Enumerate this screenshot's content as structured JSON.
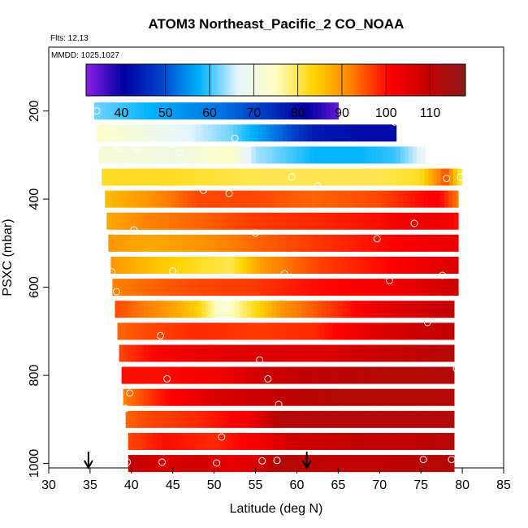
{
  "chart_data": {
    "type": "heatmap",
    "title": "ATOM3 Northeast_Pacific_2 CO_NOAA",
    "flights_label": "Flts: 12,13",
    "mmdd_label": "MMDD: 1025,1027",
    "xlabel": "Latitude (deg N)",
    "ylabel": "PSXC (mbar)",
    "xlim": [
      30,
      85
    ],
    "ylim": [
      1010,
      55
    ],
    "x_ticks": [
      "30",
      "35",
      "40",
      "45",
      "50",
      "55",
      "60",
      "65",
      "70",
      "75",
      "80",
      "85"
    ],
    "y_ticks": [
      "200",
      "400",
      "600",
      "800",
      "1000"
    ],
    "colorbar": {
      "range": [
        32,
        118
      ],
      "tick_labels": [
        "40",
        "50",
        "60",
        "70",
        "80",
        "90",
        "100",
        "110"
      ],
      "palette": [
        "#8a1fe8",
        "#0000a0",
        "#0044cc",
        "#00b4ff",
        "#e6f5ff",
        "#ffffc0",
        "#ffd400",
        "#ff8000",
        "#ff0000",
        "#c40000",
        "#8b1a1a"
      ]
    },
    "profile_markers": [
      34.8,
      61.2
    ],
    "layers": [
      {
        "p": 200,
        "x0": 35.5,
        "x1": 65.0,
        "values": [
          [
            35.5,
            62
          ],
          [
            45,
            56
          ],
          [
            52,
            52
          ],
          [
            56,
            48
          ],
          [
            60,
            42
          ],
          [
            63,
            38
          ],
          [
            65,
            34
          ]
        ]
      },
      {
        "p": 250,
        "x0": 35.8,
        "x1": 72.0,
        "values": [
          [
            35.8,
            74
          ],
          [
            45,
            68
          ],
          [
            52,
            62
          ],
          [
            58,
            52
          ],
          [
            62,
            44
          ],
          [
            68,
            42
          ],
          [
            72,
            42
          ]
        ]
      },
      {
        "p": 300,
        "x0": 36.0,
        "x1": 75.5,
        "values": [
          [
            36,
            72
          ],
          [
            45,
            70
          ],
          [
            52,
            74
          ],
          [
            55,
            64
          ],
          [
            62,
            58
          ],
          [
            68,
            58
          ],
          [
            72,
            60
          ],
          [
            75.5,
            68
          ]
        ]
      },
      {
        "p": 350,
        "x0": 36.4,
        "x1": 80.0,
        "values": [
          [
            36.4,
            82
          ],
          [
            45,
            82
          ],
          [
            55,
            80
          ],
          [
            62,
            80
          ],
          [
            70,
            80
          ],
          [
            75,
            82
          ],
          [
            78,
            96
          ],
          [
            80,
            78
          ]
        ]
      },
      {
        "p": 400,
        "x0": 36.8,
        "x1": 79.5,
        "values": [
          [
            36.8,
            86
          ],
          [
            42,
            90
          ],
          [
            48,
            96
          ],
          [
            55,
            96
          ],
          [
            62,
            94
          ],
          [
            70,
            96
          ],
          [
            75,
            100
          ],
          [
            77,
            102
          ],
          [
            79.5,
            92
          ]
        ]
      },
      {
        "p": 450,
        "x0": 37.0,
        "x1": 79.5,
        "values": [
          [
            37,
            88
          ],
          [
            42,
            92
          ],
          [
            48,
            94
          ],
          [
            55,
            97
          ],
          [
            62,
            98
          ],
          [
            70,
            100
          ],
          [
            76,
            104
          ],
          [
            79.5,
            100
          ]
        ]
      },
      {
        "p": 500,
        "x0": 37.2,
        "x1": 79.5,
        "values": [
          [
            37.2,
            90
          ],
          [
            42,
            88
          ],
          [
            48,
            90
          ],
          [
            55,
            94
          ],
          [
            62,
            97
          ],
          [
            70,
            100
          ],
          [
            76,
            103
          ],
          [
            79.5,
            104
          ]
        ]
      },
      {
        "p": 550,
        "x0": 37.5,
        "x1": 79.5,
        "values": [
          [
            37.5,
            90
          ],
          [
            42,
            86
          ],
          [
            48,
            82
          ],
          [
            52,
            80
          ],
          [
            56,
            90
          ],
          [
            62,
            96
          ],
          [
            70,
            100
          ],
          [
            76,
            104
          ],
          [
            79.5,
            106
          ]
        ]
      },
      {
        "p": 600,
        "x0": 37.7,
        "x1": 79.5,
        "values": [
          [
            37.7,
            92
          ],
          [
            42,
            94
          ],
          [
            48,
            96
          ],
          [
            55,
            97
          ],
          [
            62,
            100
          ],
          [
            70,
            102
          ],
          [
            76,
            106
          ],
          [
            79.5,
            108
          ]
        ]
      },
      {
        "p": 650,
        "x0": 38.0,
        "x1": 79.0,
        "values": [
          [
            38,
            96
          ],
          [
            44,
            90
          ],
          [
            48,
            84
          ],
          [
            51,
            72
          ],
          [
            54,
            80
          ],
          [
            58,
            90
          ],
          [
            65,
            98
          ],
          [
            70,
            104
          ],
          [
            76,
            108
          ],
          [
            79,
            110
          ]
        ]
      },
      {
        "p": 700,
        "x0": 38.3,
        "x1": 79.0,
        "values": [
          [
            38.3,
            94
          ],
          [
            42,
            96
          ],
          [
            48,
            98
          ],
          [
            55,
            97
          ],
          [
            62,
            98
          ],
          [
            68,
            104
          ],
          [
            74,
            108
          ],
          [
            79,
            110
          ]
        ]
      },
      {
        "p": 750,
        "x0": 38.5,
        "x1": 79.0,
        "values": [
          [
            38.5,
            96
          ],
          [
            42,
            100
          ],
          [
            48,
            104
          ],
          [
            55,
            106
          ],
          [
            62,
            106
          ],
          [
            68,
            108
          ],
          [
            74,
            110
          ],
          [
            79,
            112
          ]
        ]
      },
      {
        "p": 800,
        "x0": 38.8,
        "x1": 79.0,
        "values": [
          [
            38.8,
            100
          ],
          [
            44,
            100
          ],
          [
            50,
            102
          ],
          [
            56,
            108
          ],
          [
            62,
            110
          ],
          [
            70,
            112
          ],
          [
            79,
            112
          ]
        ]
      },
      {
        "p": 850,
        "x0": 39.0,
        "x1": 79.0,
        "values": [
          [
            39,
            92
          ],
          [
            44,
            100
          ],
          [
            50,
            106
          ],
          [
            58,
            110
          ],
          [
            65,
            112
          ],
          [
            72,
            112
          ],
          [
            79,
            112
          ]
        ]
      },
      {
        "p": 900,
        "x0": 39.3,
        "x1": 79.0,
        "values": [
          [
            39.3,
            94
          ],
          [
            42,
            96
          ],
          [
            48,
            98
          ],
          [
            54,
            102
          ],
          [
            58,
            112
          ],
          [
            64,
            112
          ],
          [
            72,
            112
          ],
          [
            79,
            112
          ]
        ]
      },
      {
        "p": 950,
        "x0": 39.6,
        "x1": 79.0,
        "values": [
          [
            39.6,
            96
          ],
          [
            44,
            100
          ],
          [
            50,
            98
          ],
          [
            55,
            102
          ],
          [
            60,
            108
          ],
          [
            68,
            110
          ],
          [
            74,
            110
          ],
          [
            79,
            112
          ]
        ]
      },
      {
        "p": 1000,
        "x0": 39.6,
        "x1": 79.0,
        "values": [
          [
            39.6,
            110
          ],
          [
            44,
            106
          ],
          [
            48,
            108
          ],
          [
            52,
            104
          ],
          [
            55,
            106
          ],
          [
            58,
            112
          ],
          [
            64,
            110
          ],
          [
            70,
            110
          ],
          [
            79,
            112
          ]
        ]
      }
    ],
    "samples": [
      [
        35.8,
        200
      ],
      [
        71.8,
        225
      ],
      [
        38.5,
        285
      ],
      [
        40.7,
        285
      ],
      [
        45.8,
        295
      ],
      [
        52.5,
        262
      ],
      [
        79.8,
        350
      ],
      [
        78.1,
        353
      ],
      [
        59.4,
        350
      ],
      [
        62.5,
        370
      ],
      [
        48.7,
        380
      ],
      [
        51.8,
        387
      ],
      [
        74.2,
        455
      ],
      [
        40.3,
        470
      ],
      [
        55.0,
        477
      ],
      [
        69.7,
        490
      ],
      [
        37.6,
        565
      ],
      [
        45.0,
        563
      ],
      [
        58.5,
        570
      ],
      [
        77.6,
        573
      ],
      [
        71.2,
        585
      ],
      [
        38.2,
        610
      ],
      [
        51.4,
        645
      ],
      [
        75.8,
        680
      ],
      [
        43.5,
        710
      ],
      [
        55.5,
        765
      ],
      [
        44.3,
        808
      ],
      [
        56.5,
        808
      ],
      [
        79.3,
        785
      ],
      [
        39.8,
        840
      ],
      [
        57.8,
        866
      ],
      [
        39.3,
        875
      ],
      [
        50.9,
        940
      ],
      [
        39.5,
        997
      ],
      [
        43.7,
        997
      ],
      [
        50.3,
        999
      ],
      [
        55.8,
        994
      ],
      [
        57.6,
        993
      ],
      [
        75.3,
        991
      ],
      [
        78.7,
        991
      ]
    ]
  }
}
